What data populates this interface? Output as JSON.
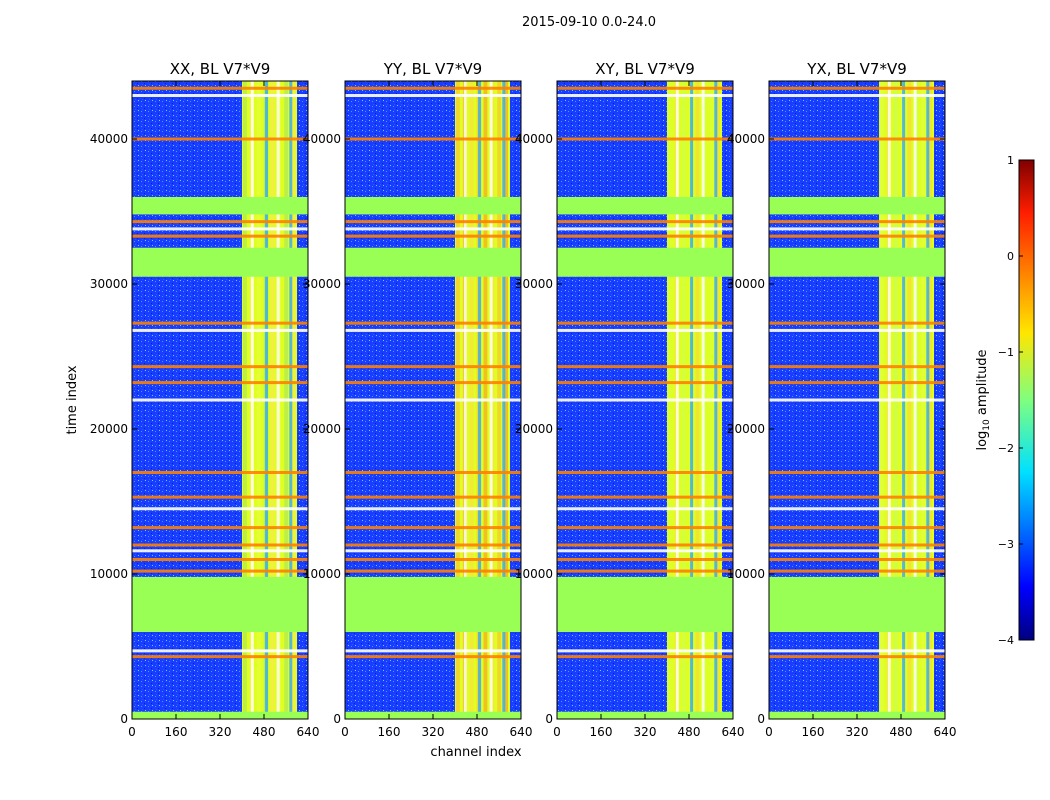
{
  "suptitle": "2015-09-10 0.0-24.0",
  "colors": {
    "background": "#ffffff",
    "flag_fill": "#99ff55",
    "noise_blue": "#1a3cff",
    "rfi_orange": "#ff7f00",
    "band_yellow": "#dfff20"
  },
  "chart_data": {
    "type": "heatmap",
    "xlabel": "channel index",
    "ylabel": "time index",
    "xlim": [
      0,
      640
    ],
    "ylim": [
      0,
      44000
    ],
    "xticks": [
      0,
      160,
      320,
      480,
      640
    ],
    "yticks": [
      0,
      10000,
      20000,
      30000,
      40000
    ],
    "colorbar": {
      "label": "log10 amplitude",
      "label_main": "log",
      "label_sub": "10",
      "label_rest": " amplitude",
      "range": [
        -4,
        1
      ],
      "ticks": [
        1,
        0,
        -1,
        -2,
        -3,
        -4
      ],
      "colormap": "jet"
    },
    "panels": [
      {
        "title": "XX, BL V7*V9",
        "pol": "XX"
      },
      {
        "title": "YY, BL V7*V9",
        "pol": "YY"
      },
      {
        "title": "XY, BL V7*V9",
        "pol": "XY"
      },
      {
        "title": "YX, BL V7*V9",
        "pol": "YX"
      }
    ],
    "flagged_time_ranges": [
      [
        0,
        500
      ],
      [
        6000,
        9800
      ],
      [
        30500,
        32500
      ],
      [
        34800,
        36000
      ]
    ],
    "rfi_band_channels": [
      400,
      600
    ],
    "rfi_lines_time": [
      4300,
      4700,
      10200,
      11000,
      11600,
      12000,
      13200,
      14500,
      15300,
      17000,
      22000,
      23200,
      24300,
      26800,
      27300,
      33300,
      33800,
      34300,
      40000,
      43000,
      43500
    ],
    "colorbar_value_display": "log10 amplitude"
  }
}
